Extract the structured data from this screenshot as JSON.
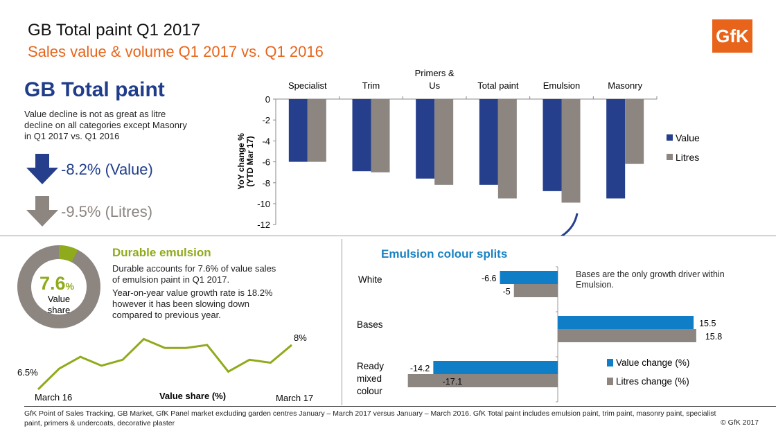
{
  "header": {
    "title": "GB Total paint Q1 2017",
    "subtitle": "Sales value & volume Q1 2017 vs. Q1 2016",
    "logo": "GfK"
  },
  "summary": {
    "heading": "GB Total paint",
    "description": "Value decline is not as great as litre decline on all categories except Masonry in Q1 2017 vs. Q1 2016",
    "value_kpi": "-8.2% (Value)",
    "litres_kpi": "-9.5% (Litres)",
    "value_icon": "arrow-down-icon",
    "litres_icon": "arrow-down-icon"
  },
  "durable": {
    "heading": "Durable emulsion",
    "share_value": "7.6",
    "share_unit": "%",
    "share_label1": "Value",
    "share_label2": "share",
    "share_fraction": 0.076,
    "text1": "Durable accounts for 7.6% of value sales of emulsion paint in Q1 2017.",
    "text2": "Year-on-year value growth rate is 18.2% however it has been slowing down compared to previous year."
  },
  "emulsion": {
    "heading": "Emulsion colour splits",
    "note": "Bases are the only growth driver within Emulsion."
  },
  "footer": {
    "text": "GfK Point of Sales Tracking, GB Market, GfK Panel market excluding garden centres January – March 2017 versus January – March 2016. GfK Total paint includes emulsion paint, trim paint, masonry paint, specialist paint, primers & undercoats, decorative plaster",
    "copyright": "© GfK 2017"
  },
  "colors": {
    "value": "#253f8c",
    "litres": "#8c8580",
    "value_change": "#0f7ec6",
    "accent_orange": "#e8641b",
    "accent_green": "#8faa1b"
  },
  "chart_data": [
    {
      "type": "bar",
      "categories": [
        "Specialist",
        "Trim",
        "Primers & Us",
        "Total paint",
        "Emulsion",
        "Masonry"
      ],
      "series": [
        {
          "name": "Value",
          "values": [
            -6.0,
            -6.9,
            -7.6,
            -8.2,
            -8.8,
            -9.5
          ]
        },
        {
          "name": "Litres",
          "values": [
            -6.0,
            -7.0,
            -8.2,
            -9.5,
            -9.9,
            -6.2
          ]
        }
      ],
      "ylabel": "YoY change % (YTD Mar 17)",
      "ylim": [
        -12,
        0
      ],
      "yticks": [
        0,
        -2,
        -4,
        -6,
        -8,
        -10,
        -12
      ],
      "legend": "right",
      "grid": false
    },
    {
      "type": "line",
      "categories": [
        "March 16",
        "",
        "",
        "",
        "",
        "",
        "",
        "",
        "",
        "",
        "",
        "",
        "March 17"
      ],
      "values": [
        6.5,
        7.2,
        7.6,
        7.3,
        7.5,
        8.2,
        7.9,
        7.9,
        8.0,
        7.1,
        7.5,
        7.4,
        8.0
      ],
      "xlabel": "Value share (%)",
      "labels": {
        "first": "6.5%",
        "last": "8%"
      }
    },
    {
      "type": "bar",
      "orientation": "horizontal",
      "categories": [
        "White",
        "Bases",
        "Ready mixed colour"
      ],
      "series": [
        {
          "name": "Value change (%)",
          "values": [
            -6.6,
            15.5,
            -14.2
          ]
        },
        {
          "name": "Litres change (%)",
          "values": [
            -5,
            15.8,
            -17.1
          ]
        }
      ],
      "legend": "right",
      "grid": false
    }
  ]
}
